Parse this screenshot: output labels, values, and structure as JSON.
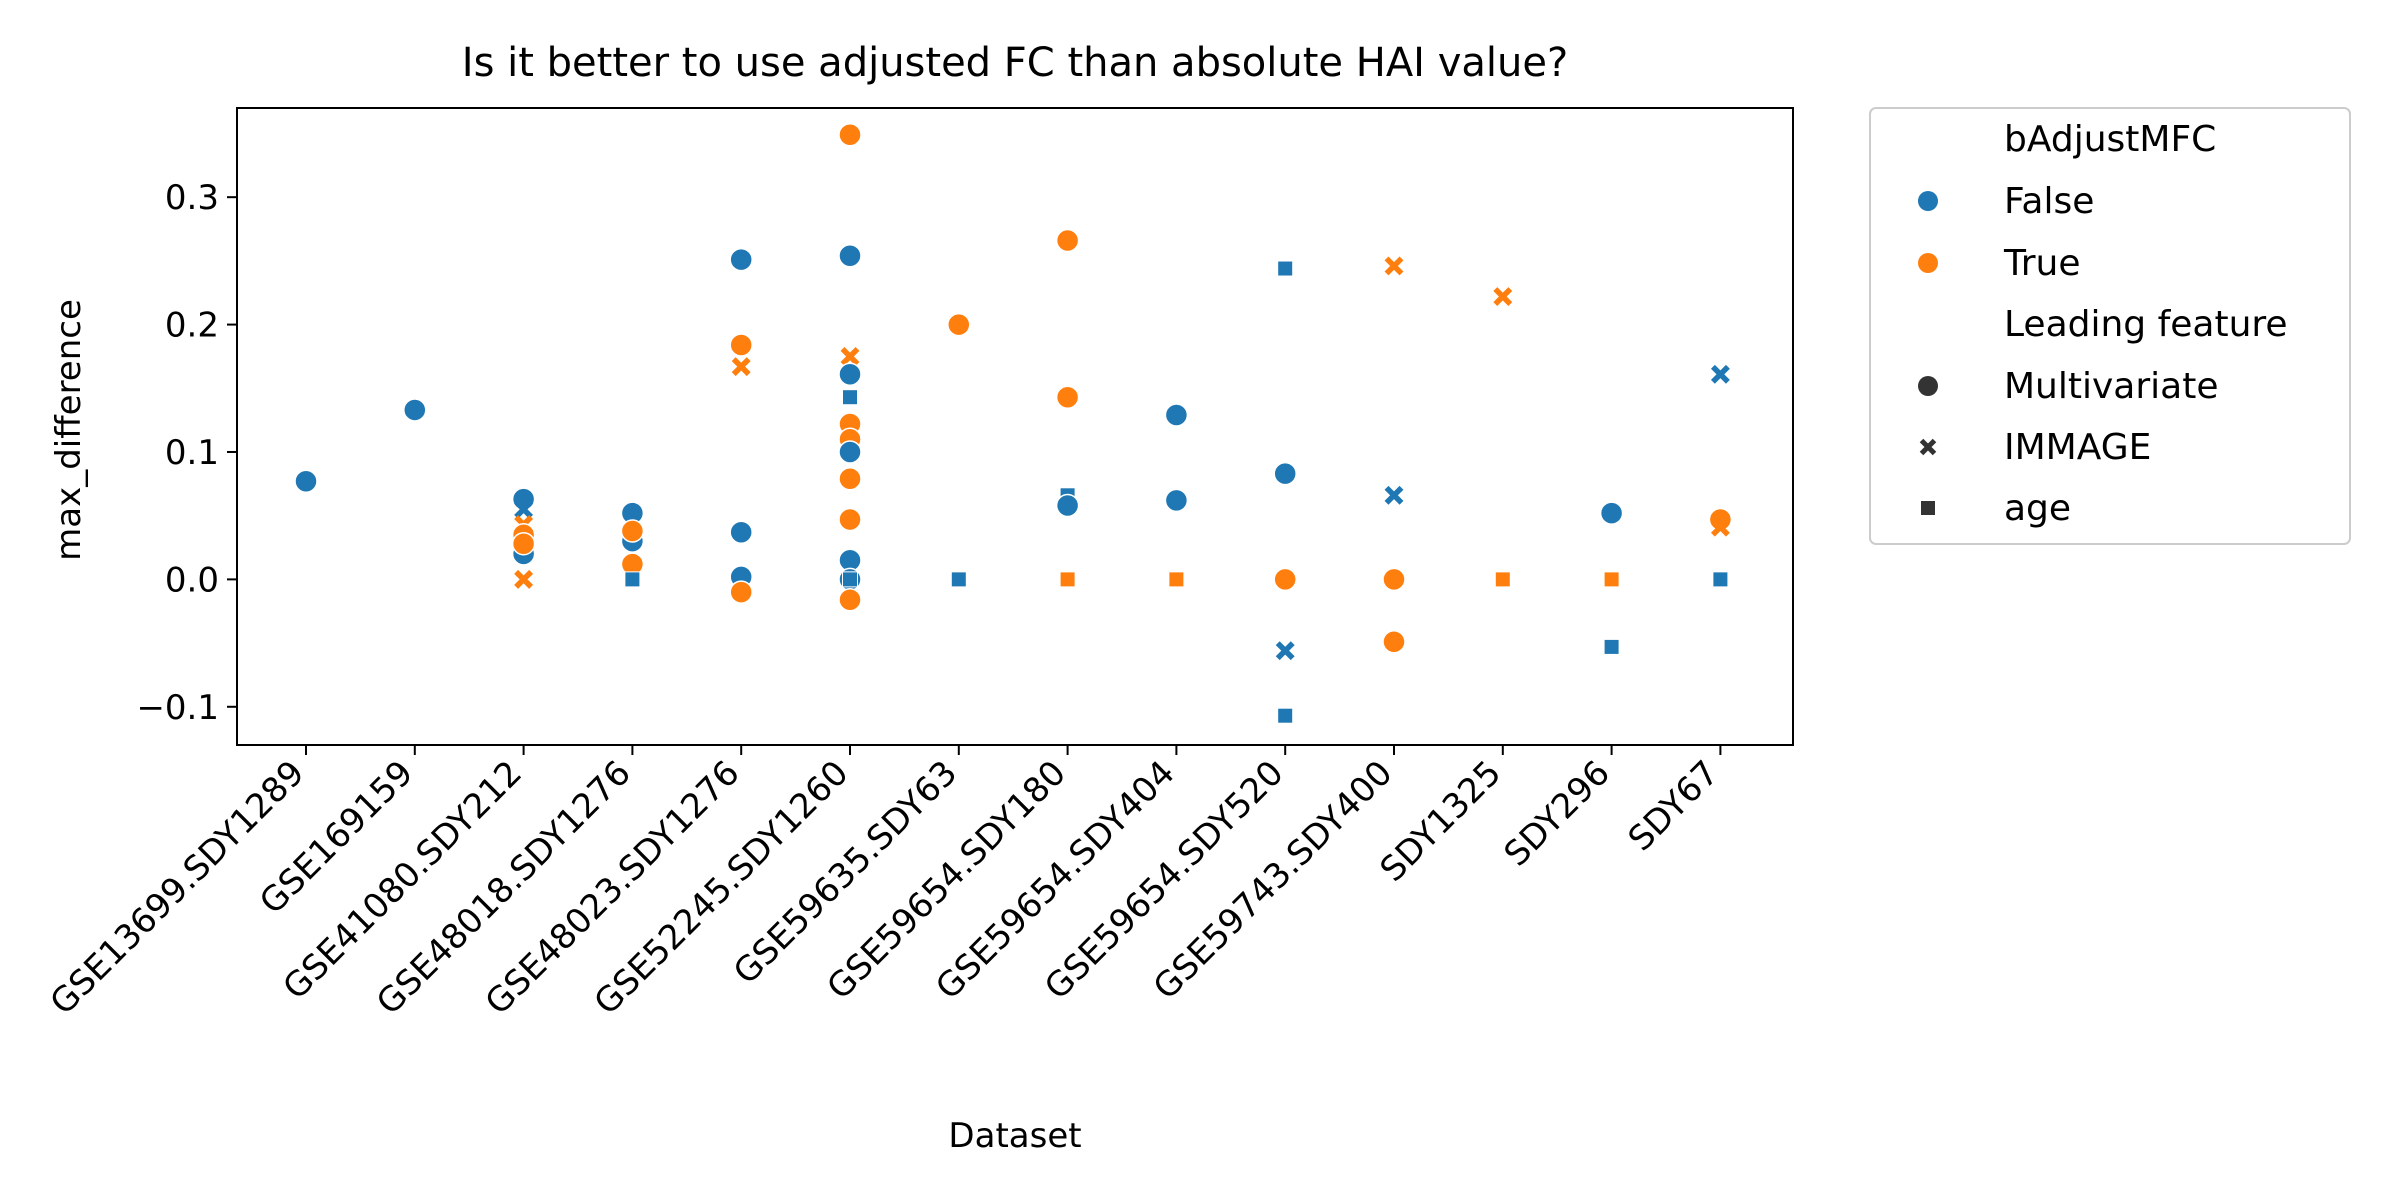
{
  "chart_data": {
    "type": "scatter",
    "title": "Is it better to use adjusted FC than absolute HAI value?",
    "xlabel": "Dataset",
    "ylabel": "max_difference",
    "categories": [
      "GSE13699.SDY1289",
      "GSE169159",
      "GSE41080.SDY212",
      "GSE48018.SDY1276",
      "GSE48023.SDY1276",
      "GSE52245.SDY1260",
      "GSE59635.SDY63",
      "GSE59654.SDY180",
      "GSE59654.SDY404",
      "GSE59654.SDY520",
      "GSE59743.SDY400",
      "SDY1325",
      "SDY296",
      "SDY67"
    ],
    "ylim": [
      -0.13,
      0.37
    ],
    "yticks": [
      -0.1,
      0.0,
      0.1,
      0.2,
      0.3
    ],
    "ytick_labels": [
      "−0.1",
      "0.0",
      "0.1",
      "0.2",
      "0.3"
    ],
    "colors": {
      "False": "#1f77b4",
      "True": "#ff7f0e"
    },
    "grid": false,
    "legend": {
      "placement": "outside-right",
      "hue_title": "bAdjustMFC",
      "hue_entries": [
        "False",
        "True"
      ],
      "style_title": "Leading feature",
      "style_entries": [
        "Multivariate",
        "IMMAGE",
        "age"
      ],
      "style_markers": [
        "circle",
        "x",
        "square"
      ]
    },
    "points": [
      {
        "x": "GSE13699.SDY1289",
        "y": 0.077,
        "hue": "False",
        "style": "circle"
      },
      {
        "x": "GSE169159",
        "y": 0.133,
        "hue": "False",
        "style": "circle"
      },
      {
        "x": "GSE41080.SDY212",
        "y": 0.063,
        "hue": "False",
        "style": "circle"
      },
      {
        "x": "GSE41080.SDY212",
        "y": 0.055,
        "hue": "False",
        "style": "x"
      },
      {
        "x": "GSE41080.SDY212",
        "y": 0.02,
        "hue": "False",
        "style": "circle"
      },
      {
        "x": "GSE41080.SDY212",
        "y": 0.043,
        "hue": "True",
        "style": "x"
      },
      {
        "x": "GSE41080.SDY212",
        "y": 0.035,
        "hue": "True",
        "style": "circle"
      },
      {
        "x": "GSE41080.SDY212",
        "y": 0.028,
        "hue": "True",
        "style": "circle"
      },
      {
        "x": "GSE41080.SDY212",
        "y": 0.0,
        "hue": "True",
        "style": "x"
      },
      {
        "x": "GSE48018.SDY1276",
        "y": 0.052,
        "hue": "False",
        "style": "circle"
      },
      {
        "x": "GSE48018.SDY1276",
        "y": 0.03,
        "hue": "False",
        "style": "circle"
      },
      {
        "x": "GSE48018.SDY1276",
        "y": 0.038,
        "hue": "True",
        "style": "circle"
      },
      {
        "x": "GSE48018.SDY1276",
        "y": 0.012,
        "hue": "True",
        "style": "circle"
      },
      {
        "x": "GSE48018.SDY1276",
        "y": 0.0,
        "hue": "False",
        "style": "square"
      },
      {
        "x": "GSE48023.SDY1276",
        "y": 0.251,
        "hue": "False",
        "style": "circle"
      },
      {
        "x": "GSE48023.SDY1276",
        "y": 0.184,
        "hue": "True",
        "style": "circle"
      },
      {
        "x": "GSE48023.SDY1276",
        "y": 0.167,
        "hue": "True",
        "style": "x"
      },
      {
        "x": "GSE48023.SDY1276",
        "y": 0.037,
        "hue": "False",
        "style": "circle"
      },
      {
        "x": "GSE48023.SDY1276",
        "y": 0.002,
        "hue": "False",
        "style": "circle"
      },
      {
        "x": "GSE48023.SDY1276",
        "y": -0.01,
        "hue": "True",
        "style": "circle"
      },
      {
        "x": "GSE52245.SDY1260",
        "y": 0.349,
        "hue": "True",
        "style": "circle"
      },
      {
        "x": "GSE52245.SDY1260",
        "y": 0.254,
        "hue": "False",
        "style": "circle"
      },
      {
        "x": "GSE52245.SDY1260",
        "y": 0.175,
        "hue": "True",
        "style": "x"
      },
      {
        "x": "GSE52245.SDY1260",
        "y": 0.161,
        "hue": "False",
        "style": "circle"
      },
      {
        "x": "GSE52245.SDY1260",
        "y": 0.143,
        "hue": "False",
        "style": "square"
      },
      {
        "x": "GSE52245.SDY1260",
        "y": 0.122,
        "hue": "True",
        "style": "circle"
      },
      {
        "x": "GSE52245.SDY1260",
        "y": 0.11,
        "hue": "True",
        "style": "circle"
      },
      {
        "x": "GSE52245.SDY1260",
        "y": 0.1,
        "hue": "False",
        "style": "circle"
      },
      {
        "x": "GSE52245.SDY1260",
        "y": 0.079,
        "hue": "True",
        "style": "circle"
      },
      {
        "x": "GSE52245.SDY1260",
        "y": 0.047,
        "hue": "True",
        "style": "circle"
      },
      {
        "x": "GSE52245.SDY1260",
        "y": 0.015,
        "hue": "False",
        "style": "circle"
      },
      {
        "x": "GSE52245.SDY1260",
        "y": 0.0,
        "hue": "False",
        "style": "circle"
      },
      {
        "x": "GSE52245.SDY1260",
        "y": 0.0,
        "hue": "False",
        "style": "square"
      },
      {
        "x": "GSE52245.SDY1260",
        "y": -0.016,
        "hue": "True",
        "style": "circle"
      },
      {
        "x": "GSE59635.SDY63",
        "y": 0.2,
        "hue": "True",
        "style": "circle"
      },
      {
        "x": "GSE59635.SDY63",
        "y": 0.0,
        "hue": "False",
        "style": "square"
      },
      {
        "x": "GSE59654.SDY180",
        "y": 0.266,
        "hue": "True",
        "style": "circle"
      },
      {
        "x": "GSE59654.SDY180",
        "y": 0.143,
        "hue": "True",
        "style": "circle"
      },
      {
        "x": "GSE59654.SDY180",
        "y": 0.066,
        "hue": "False",
        "style": "square"
      },
      {
        "x": "GSE59654.SDY180",
        "y": 0.058,
        "hue": "False",
        "style": "circle"
      },
      {
        "x": "GSE59654.SDY180",
        "y": 0.0,
        "hue": "True",
        "style": "square"
      },
      {
        "x": "GSE59654.SDY404",
        "y": 0.129,
        "hue": "False",
        "style": "circle"
      },
      {
        "x": "GSE59654.SDY404",
        "y": 0.062,
        "hue": "False",
        "style": "circle"
      },
      {
        "x": "GSE59654.SDY404",
        "y": 0.0,
        "hue": "True",
        "style": "square"
      },
      {
        "x": "GSE59654.SDY520",
        "y": 0.244,
        "hue": "False",
        "style": "square"
      },
      {
        "x": "GSE59654.SDY520",
        "y": 0.083,
        "hue": "False",
        "style": "circle"
      },
      {
        "x": "GSE59654.SDY520",
        "y": 0.0,
        "hue": "True",
        "style": "circle"
      },
      {
        "x": "GSE59654.SDY520",
        "y": -0.056,
        "hue": "False",
        "style": "x"
      },
      {
        "x": "GSE59654.SDY520",
        "y": -0.107,
        "hue": "False",
        "style": "square"
      },
      {
        "x": "GSE59743.SDY400",
        "y": 0.246,
        "hue": "True",
        "style": "x"
      },
      {
        "x": "GSE59743.SDY400",
        "y": 0.066,
        "hue": "False",
        "style": "x"
      },
      {
        "x": "GSE59743.SDY400",
        "y": 0.0,
        "hue": "True",
        "style": "circle"
      },
      {
        "x": "GSE59743.SDY400",
        "y": -0.049,
        "hue": "True",
        "style": "circle"
      },
      {
        "x": "SDY1325",
        "y": 0.222,
        "hue": "True",
        "style": "x"
      },
      {
        "x": "SDY1325",
        "y": 0.0,
        "hue": "True",
        "style": "square"
      },
      {
        "x": "SDY296",
        "y": 0.052,
        "hue": "False",
        "style": "circle"
      },
      {
        "x": "SDY296",
        "y": 0.0,
        "hue": "True",
        "style": "square"
      },
      {
        "x": "SDY296",
        "y": -0.053,
        "hue": "False",
        "style": "square"
      },
      {
        "x": "SDY67",
        "y": 0.161,
        "hue": "False",
        "style": "x"
      },
      {
        "x": "SDY67",
        "y": 0.047,
        "hue": "True",
        "style": "circle"
      },
      {
        "x": "SDY67",
        "y": 0.041,
        "hue": "True",
        "style": "x"
      },
      {
        "x": "SDY67",
        "y": 0.0,
        "hue": "False",
        "style": "square"
      }
    ]
  }
}
